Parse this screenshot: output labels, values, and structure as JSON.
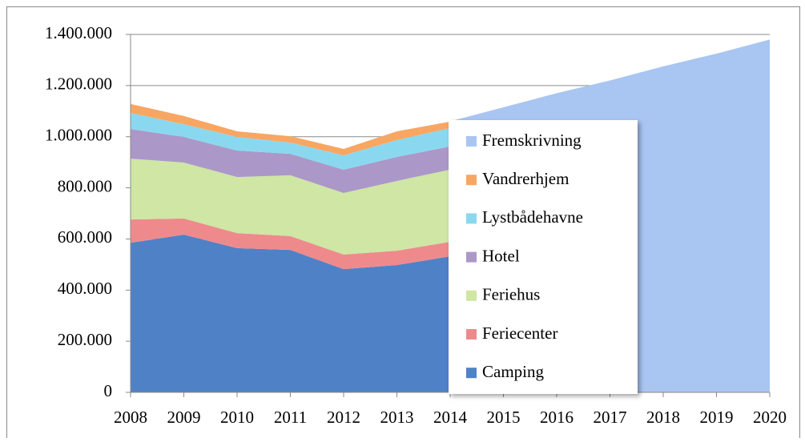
{
  "chart_data": {
    "type": "area",
    "categories": [
      "2008",
      "2009",
      "2010",
      "2011",
      "2012",
      "2013",
      "2014",
      "2015",
      "2016",
      "2017",
      "2018",
      "2019",
      "2020"
    ],
    "series": [
      {
        "name": "Camping",
        "color": "#4f81c7",
        "values": [
          585000,
          617000,
          564000,
          557000,
          482000,
          498000,
          532000,
          null,
          null,
          null,
          null,
          null,
          null
        ]
      },
      {
        "name": "Feriecenter",
        "color": "#ee8a8c",
        "values": [
          91000,
          63000,
          59000,
          54000,
          57000,
          56000,
          57000,
          null,
          null,
          null,
          null,
          null,
          null
        ]
      },
      {
        "name": "Feriehus",
        "color": "#cfe6a4",
        "values": [
          238000,
          219000,
          219000,
          238000,
          241000,
          273000,
          282000,
          null,
          null,
          null,
          null,
          null,
          null
        ]
      },
      {
        "name": "Hotel",
        "color": "#ab98c8",
        "values": [
          116000,
          100000,
          104000,
          84000,
          91000,
          94000,
          91000,
          null,
          null,
          null,
          null,
          null,
          null
        ]
      },
      {
        "name": "Lystbådehavne",
        "color": "#8ad8ef",
        "values": [
          63000,
          50000,
          53000,
          44000,
          56000,
          66000,
          72000,
          null,
          null,
          null,
          null,
          null,
          null
        ]
      },
      {
        "name": "Vandrerhjem",
        "color": "#f8a662",
        "values": [
          35000,
          32000,
          22000,
          25000,
          25000,
          34000,
          25000,
          null,
          null,
          null,
          null,
          null,
          null
        ]
      },
      {
        "name": "Fremskrivning",
        "color": "#a9c5f2",
        "values": [
          null,
          null,
          null,
          null,
          null,
          null,
          1060000,
          1115000,
          1170000,
          1220000,
          1275000,
          1325000,
          1380000
        ]
      }
    ],
    "ylim": [
      0,
      1400000
    ],
    "yticks": [
      0,
      {
        "value": 200000,
        "label": "200.000"
      },
      {
        "value": 400000,
        "label": "400.000"
      },
      {
        "value": 600000,
        "label": "600.000"
      },
      {
        "value": 800000,
        "label": "800.000"
      },
      {
        "value": 1000000,
        "label": "1.000.000"
      },
      {
        "value": 1200000,
        "label": "1.200.000"
      },
      {
        "value": 1400000,
        "label": "1.400.000"
      }
    ],
    "grid": true
  }
}
